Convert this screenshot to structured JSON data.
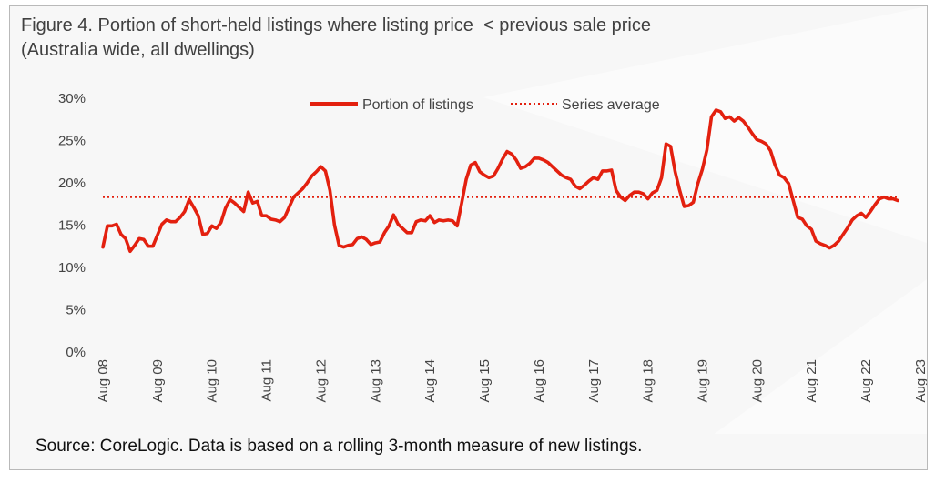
{
  "figure": {
    "title_line1": "Figure 4. Portion of short-held listings where listing price  < previous sale price",
    "title_line2": "(Australia wide, all dwellings)",
    "source": "Source: CoreLogic. Data is based on a rolling 3-month measure of new listings."
  },
  "colors": {
    "series": "#e3200f",
    "background": "#f7f7f7",
    "text": "#404040"
  },
  "chart_data": {
    "type": "line",
    "title": "Figure 4. Portion of short-held listings where listing price  < previous sale price (Australia wide, all dwellings)",
    "ylim": [
      0,
      30
    ],
    "yticks": [
      "0%",
      "5%",
      "10%",
      "15%",
      "20%",
      "25%",
      "30%"
    ],
    "ytick_values": [
      0,
      5,
      10,
      15,
      20,
      25,
      30
    ],
    "y_unit": "%",
    "x_ticks": [
      "Aug 08",
      "Aug 09",
      "Aug 10",
      "Aug 11",
      "Aug 12",
      "Aug 13",
      "Aug 14",
      "Aug 15",
      "Aug 16",
      "Aug 17",
      "Aug 18",
      "Aug 19",
      "Aug 20",
      "Aug 21",
      "Aug 22",
      "Aug 23"
    ],
    "x_start": "Aug 2008",
    "x_end": "Aug 2023",
    "frequency": "monthly",
    "legend_position": "top-center",
    "grid": false,
    "series": [
      {
        "name": "Portion of listings",
        "style": "solid",
        "values": [
          12.3,
          14.8,
          14.8,
          15.0,
          13.8,
          13.3,
          11.8,
          12.5,
          13.3,
          13.2,
          12.4,
          12.4,
          13.7,
          15.0,
          15.5,
          15.3,
          15.3,
          15.8,
          16.5,
          17.9,
          17.0,
          16.0,
          13.8,
          13.9,
          14.8,
          14.5,
          15.2,
          16.9,
          17.9,
          17.5,
          17.0,
          16.5,
          18.8,
          17.5,
          17.7,
          16.0,
          16.0,
          15.6,
          15.5,
          15.3,
          15.8,
          17.0,
          18.2,
          18.7,
          19.2,
          19.9,
          20.7,
          21.2,
          21.8,
          21.3,
          19.0,
          14.9,
          12.5,
          12.3,
          12.5,
          12.6,
          13.3,
          13.5,
          13.2,
          12.6,
          12.8,
          12.9,
          14.0,
          14.8,
          16.1,
          15.0,
          14.5,
          14.0,
          14.0,
          15.3,
          15.5,
          15.4,
          16.0,
          15.2,
          15.5,
          15.4,
          15.5,
          15.4,
          14.8,
          17.5,
          20.3,
          22.0,
          22.3,
          21.2,
          20.8,
          20.5,
          20.7,
          21.6,
          22.7,
          23.6,
          23.3,
          22.6,
          21.6,
          21.8,
          22.2,
          22.8,
          22.8,
          22.6,
          22.3,
          21.8,
          21.3,
          20.8,
          20.5,
          20.3,
          19.5,
          19.2,
          19.6,
          20.1,
          20.5,
          20.3,
          21.3,
          21.3,
          21.4,
          19.0,
          18.2,
          17.8,
          18.4,
          18.8,
          18.8,
          18.6,
          18.0,
          18.7,
          19.0,
          20.5,
          24.5,
          24.2,
          21.2,
          19.0,
          17.1,
          17.2,
          17.6,
          19.8,
          21.5,
          23.8,
          27.7,
          28.5,
          28.3,
          27.5,
          27.7,
          27.2,
          27.6,
          27.2,
          26.5,
          25.7,
          25.0,
          24.8,
          24.5,
          23.7,
          22.0,
          20.8,
          20.5,
          19.8,
          17.8,
          15.8,
          15.6,
          14.8,
          14.4,
          13.0,
          12.7,
          12.5,
          12.2,
          12.5,
          13.0,
          13.8,
          14.6,
          15.5,
          16.0,
          16.3,
          15.8,
          16.5,
          17.3,
          18.0,
          18.2,
          18.0,
          18.0,
          17.8
        ]
      },
      {
        "name": "Series average",
        "style": "dotted",
        "constant": 18.2
      }
    ]
  }
}
